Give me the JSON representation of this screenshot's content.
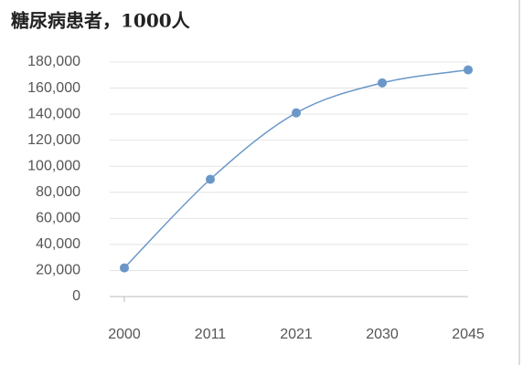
{
  "chart_data": {
    "type": "line",
    "title": "糖尿病患者，1000人",
    "categories": [
      "2000",
      "2011",
      "2021",
      "2030",
      "2045"
    ],
    "series": [
      {
        "name": "糖尿病患者",
        "color": "#6a97c8",
        "values": [
          22000,
          90000,
          141000,
          164000,
          174000
        ]
      }
    ],
    "ylim": [
      0,
      180000
    ],
    "yticks": [
      0,
      {
        "value": 20000,
        "label": "20,000"
      },
      {
        "value": 40000,
        "label": "40,000"
      },
      {
        "value": 60000,
        "label": "60,000"
      },
      {
        "value": 80000,
        "label": "80,000"
      },
      {
        "value": 100000,
        "label": "100,000"
      },
      {
        "value": 120000,
        "label": "120,000"
      },
      {
        "value": 140000,
        "label": "140,000"
      },
      {
        "value": 160000,
        "label": "160,000"
      },
      {
        "value": 180000,
        "label": "180,000"
      }
    ],
    "grid": true
  }
}
